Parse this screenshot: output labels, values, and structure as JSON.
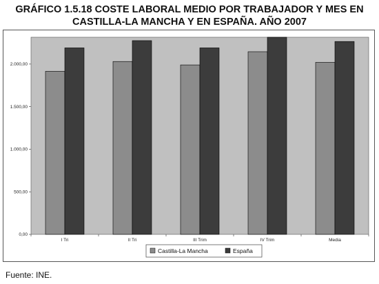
{
  "title_line1": "GRÁFICO 1.5.18 COSTE LABORAL MEDIO POR TRABAJADOR Y MES EN",
  "title_line2": "CASTILLA-LA MANCHA Y EN ESPAÑA. AÑO 2007",
  "source": "Fuente: INE.",
  "colors": {
    "plot_background": "#c0c0c0",
    "castilla": "#8c8c8c",
    "espana": "#3c3c3c",
    "bar_stroke": "#000000"
  },
  "chart_data": {
    "type": "bar",
    "title": "GRÁFICO 1.5.18 COSTE LABORAL MEDIO POR TRABAJADOR Y MES EN CASTILLA-LA MANCHA Y EN ESPAÑA. AÑO 2007",
    "categories": [
      "I Tri",
      "II Tri",
      "III Trim",
      "IV Trim",
      "Media"
    ],
    "series": [
      {
        "name": "Castilla-La Mancha",
        "values": [
          1915,
          2030,
          1990,
          2145,
          2020
        ]
      },
      {
        "name": "España",
        "values": [
          2190,
          2275,
          2190,
          2315,
          2265
        ]
      }
    ],
    "ylim": [
      0,
      2315
    ],
    "yticks": [
      0,
      500,
      1000,
      1500,
      2000
    ],
    "ytick_labels": [
      "0,00",
      "500,00",
      "1.000,00",
      "1.500,00",
      "2.000,00"
    ],
    "xlabel": "",
    "ylabel": "",
    "grid": false,
    "legend_position": "bottom"
  }
}
